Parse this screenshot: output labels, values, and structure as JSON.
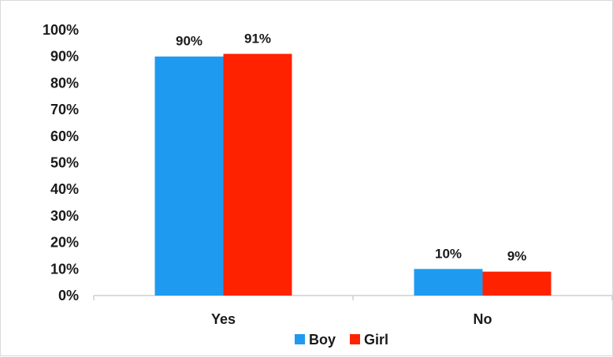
{
  "chart_data": {
    "type": "bar",
    "categories": [
      "Yes",
      "No"
    ],
    "series": [
      {
        "name": "Boy",
        "values": [
          90,
          10
        ],
        "labels": [
          "90%",
          "10%"
        ],
        "color": "#1e9bf0"
      },
      {
        "name": "Girl",
        "values": [
          91,
          9
        ],
        "labels": [
          "91%",
          "9%"
        ],
        "color": "#ff2200"
      }
    ],
    "yticks": [
      "0%",
      "10%",
      "20%",
      "30%",
      "40%",
      "50%",
      "60%",
      "70%",
      "80%",
      "90%",
      "100%"
    ],
    "ylim": [
      0,
      100
    ],
    "grid": false,
    "legend_position": "bottom"
  }
}
